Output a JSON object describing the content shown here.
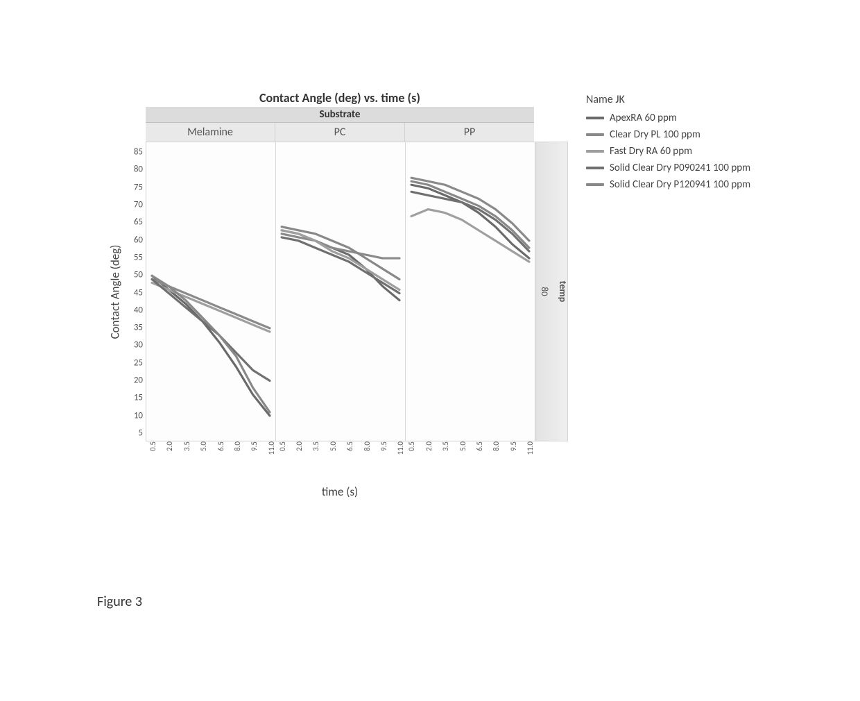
{
  "chart": {
    "type": "line-trellis",
    "title": "Contact Angle (deg) vs. time (s)",
    "trellis_header": "Substrate",
    "panels": [
      "Melamine",
      "PC",
      "PP"
    ],
    "ylabel": "Contact Angle (deg)",
    "xlabel": "time (s)",
    "right_strip_label": "temp",
    "right_strip_value": "80",
    "ylim": [
      3,
      88
    ],
    "yticks": [
      5,
      10,
      15,
      20,
      25,
      30,
      35,
      40,
      45,
      50,
      55,
      60,
      65,
      70,
      75,
      80,
      85
    ],
    "xlim": [
      0,
      11.5
    ],
    "xticks": [
      0.5,
      2.0,
      3.5,
      5.0,
      6.5,
      8.0,
      9.5,
      11.0
    ],
    "xtick_labels": [
      "0.5",
      "2.0",
      "3.5",
      "5.0",
      "6.5",
      "8.0",
      "9.5",
      "11.0"
    ],
    "background_color": "#fdfdfd",
    "grid_color": "#e5e5e5",
    "panel_header_bg": "#e9e9e9",
    "substrate_header_bg": "#dcdcdc",
    "right_strip_bg": "#e8e8e8",
    "title_fontsize": 18,
    "label_fontsize": 17,
    "tick_fontsize": 13,
    "line_width": 3.2
  },
  "legend": {
    "title": "Name JK",
    "items": [
      {
        "key": "apex",
        "label": "ApexRA 60 ppm",
        "color": "#6a6a6a"
      },
      {
        "key": "cdpl",
        "label": "Clear Dry PL 100 ppm",
        "color": "#8a8a8a"
      },
      {
        "key": "fdra",
        "label": "Fast Dry RA 60 ppm",
        "color": "#9f9f9f"
      },
      {
        "key": "scd09",
        "label": "Solid Clear Dry P090241 100 ppm",
        "color": "#707070"
      },
      {
        "key": "scd12",
        "label": "Solid Clear Dry P120941 100 ppm",
        "color": "#888888"
      }
    ]
  },
  "series": {
    "Melamine": {
      "apex": {
        "x": [
          0.5,
          2,
          3.5,
          5,
          6.5,
          8,
          9.5,
          11
        ],
        "y": [
          50,
          46,
          42,
          37,
          31,
          24,
          16,
          10
        ]
      },
      "cdpl": {
        "x": [
          0.5,
          2,
          3.5,
          5,
          6.5,
          8,
          9.5,
          11
        ],
        "y": [
          49,
          47,
          45,
          43,
          41,
          39,
          37,
          35
        ]
      },
      "fdra": {
        "x": [
          0.5,
          2,
          3.5,
          5,
          6.5,
          8,
          9.5,
          11
        ],
        "y": [
          48,
          46,
          44,
          42,
          40,
          38,
          36,
          34
        ]
      },
      "scd09": {
        "x": [
          0.5,
          2,
          3.5,
          5,
          6.5,
          8,
          9.5,
          11
        ],
        "y": [
          49,
          45,
          41,
          37,
          33,
          28,
          23,
          20
        ]
      },
      "scd12": {
        "x": [
          0.5,
          2,
          3.5,
          5,
          6.5,
          8,
          9.5,
          11
        ],
        "y": [
          50,
          47,
          43,
          38,
          33,
          27,
          18,
          11
        ]
      }
    },
    "PC": {
      "apex": {
        "x": [
          0.5,
          2,
          3.5,
          5,
          6.5,
          8,
          9.5,
          11
        ],
        "y": [
          63,
          62,
          60,
          58,
          56,
          52,
          47,
          43
        ]
      },
      "cdpl": {
        "x": [
          0.5,
          2,
          3.5,
          5,
          6.5,
          8,
          9.5,
          11
        ],
        "y": [
          62,
          61,
          60,
          58,
          57,
          56,
          55,
          55
        ]
      },
      "fdra": {
        "x": [
          0.5,
          2,
          3.5,
          5,
          6.5,
          8,
          9.5,
          11
        ],
        "y": [
          63,
          62,
          60,
          57,
          55,
          52,
          49,
          46
        ]
      },
      "scd09": {
        "x": [
          0.5,
          2,
          3.5,
          5,
          6.5,
          8,
          9.5,
          11
        ],
        "y": [
          61,
          60,
          58,
          56,
          54,
          51,
          48,
          45
        ]
      },
      "scd12": {
        "x": [
          0.5,
          2,
          3.5,
          5,
          6.5,
          8,
          9.5,
          11
        ],
        "y": [
          64,
          63,
          62,
          60,
          58,
          55,
          52,
          49
        ]
      }
    },
    "PP": {
      "apex": {
        "x": [
          0.5,
          2,
          3.5,
          5,
          6.5,
          8,
          9.5,
          11
        ],
        "y": [
          76,
          75,
          73,
          71,
          68,
          64,
          59,
          55
        ]
      },
      "cdpl": {
        "x": [
          0.5,
          2,
          3.5,
          5,
          6.5,
          8,
          9.5,
          11
        ],
        "y": [
          78,
          77,
          76,
          74,
          72,
          69,
          65,
          60
        ]
      },
      "fdra": {
        "x": [
          0.5,
          2,
          3.5,
          5,
          6.5,
          8,
          9.5,
          11
        ],
        "y": [
          67,
          69,
          68,
          66,
          63,
          60,
          57,
          54
        ]
      },
      "scd09": {
        "x": [
          0.5,
          2,
          3.5,
          5,
          6.5,
          8,
          9.5,
          11
        ],
        "y": [
          74,
          73,
          72,
          71,
          69,
          66,
          62,
          57
        ]
      },
      "scd12": {
        "x": [
          0.5,
          2,
          3.5,
          5,
          6.5,
          8,
          9.5,
          11
        ],
        "y": [
          77,
          76,
          74,
          72,
          70,
          67,
          63,
          58
        ]
      }
    }
  },
  "caption": "Figure 3"
}
